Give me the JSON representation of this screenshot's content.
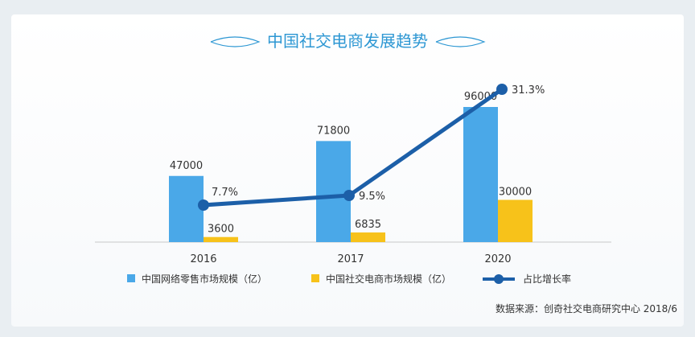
{
  "chart_data": {
    "type": "bar",
    "title": "中国社交电商发展趋势",
    "categories": [
      "2016",
      "2017",
      "2020"
    ],
    "series": [
      {
        "name": "中国网络零售市场规模（亿）",
        "type": "bar",
        "color": "#4aa8e8",
        "values": [
          47000,
          71800,
          96000
        ]
      },
      {
        "name": "中国社交电商市场规模（亿）",
        "type": "bar",
        "color": "#f7c21a",
        "values": [
          3600,
          6835,
          30000
        ]
      },
      {
        "name": "占比增长率",
        "type": "line",
        "color": "#1c5fa8",
        "values": [
          7.7,
          9.5,
          31.3
        ],
        "labels": [
          "7.7%",
          "9.5%",
          "31.3%"
        ]
      }
    ],
    "bar_value_labels": {
      "series0": [
        "47000",
        "71800",
        "96000"
      ],
      "series1": [
        "3600",
        "6835",
        "30000"
      ]
    },
    "legend_position": "bottom",
    "grid": false
  },
  "source_note": "数据来源：创奇社交电商研究中心 2018/6"
}
